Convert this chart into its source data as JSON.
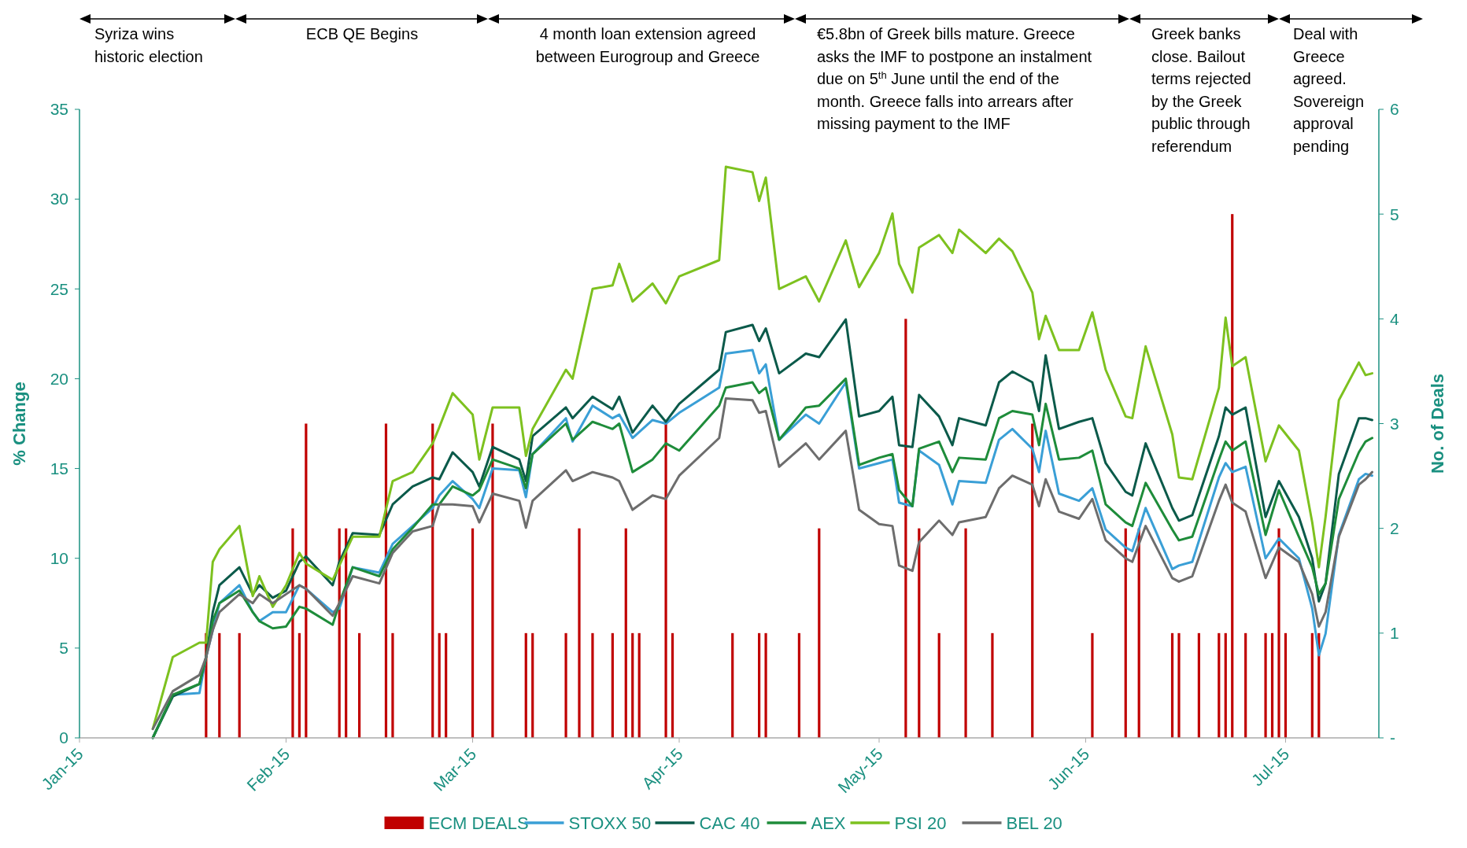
{
  "chart_data": {
    "type": "line",
    "ylabel": "% Change",
    "y2label": "No. of Deals",
    "xlim": [
      "2015-01-01",
      "2015-07-15"
    ],
    "xticks": [
      {
        "value": "2015-01-01",
        "label": "Jan-15"
      },
      {
        "value": "2015-02-01",
        "label": "Feb-15"
      },
      {
        "value": "2015-03-01",
        "label": "Mar-15"
      },
      {
        "value": "2015-04-01",
        "label": "Apr-15"
      },
      {
        "value": "2015-05-01",
        "label": "May-15"
      },
      {
        "value": "2015-06-01",
        "label": "Jun-15"
      },
      {
        "value": "2015-07-01",
        "label": "Jul-15"
      }
    ],
    "ylim": [
      0,
      35
    ],
    "yticks": [
      0,
      5,
      10,
      15,
      20,
      25,
      30,
      35
    ],
    "y2lim": [
      0,
      6
    ],
    "y2ticks": [
      {
        "value": 0,
        "label": "-"
      },
      1,
      2,
      3,
      4,
      5,
      6
    ],
    "legend": "bottom",
    "grid": false,
    "marker": "none",
    "line_style": "solid",
    "annotations": [
      "Syriza wins historic election",
      "ECB QE Begins",
      "4 month loan extension agreed between Eurogroup and Greece",
      "€5.8bn of Greek bills mature. Greece asks the IMF to postpone an instalment due on 5$^{th}$ June until the end of the month. Greece falls into arrears after missing payment to the IMF",
      "Greek banks close. Bailout terms rejected by the Greek public through referendum",
      "Deal with Greece agreed. Sovereign approval pending"
    ],
    "x": [
      "2015-01-12",
      "2015-01-15",
      "2015-01-19",
      "2015-01-20",
      "2015-01-21",
      "2015-01-22",
      "2015-01-25",
      "2015-01-27",
      "2015-01-28",
      "2015-01-30",
      "2015-02-01",
      "2015-02-03",
      "2015-02-04",
      "2015-02-08",
      "2015-02-09",
      "2015-02-11",
      "2015-02-15",
      "2015-02-17",
      "2015-02-20",
      "2015-02-23",
      "2015-02-24",
      "2015-02-26",
      "2015-03-01",
      "2015-03-02",
      "2015-03-04",
      "2015-03-08",
      "2015-03-09",
      "2015-03-10",
      "2015-03-15",
      "2015-03-16",
      "2015-03-19",
      "2015-03-22",
      "2015-03-23",
      "2015-03-25",
      "2015-03-28",
      "2015-03-30",
      "2015-04-01",
      "2015-04-07",
      "2015-04-08",
      "2015-04-12",
      "2015-04-13",
      "2015-04-14",
      "2015-04-16",
      "2015-04-20",
      "2015-04-22",
      "2015-04-26",
      "2015-04-28",
      "2015-05-01",
      "2015-05-03",
      "2015-05-04",
      "2015-05-06",
      "2015-05-07",
      "2015-05-10",
      "2015-05-12",
      "2015-05-13",
      "2015-05-17",
      "2015-05-19",
      "2015-05-21",
      "2015-05-24",
      "2015-05-25",
      "2015-05-26",
      "2015-05-28",
      "2015-05-31",
      "2015-06-02",
      "2015-06-04",
      "2015-06-07",
      "2015-06-08",
      "2015-06-10",
      "2015-06-14",
      "2015-06-15",
      "2015-06-17",
      "2015-06-21",
      "2015-06-22",
      "2015-06-23",
      "2015-06-25",
      "2015-06-28",
      "2015-06-30",
      "2015-07-03",
      "2015-07-05",
      "2015-07-06",
      "2015-07-07",
      "2015-07-09",
      "2015-07-12",
      "2015-07-13",
      "2015-07-14"
    ],
    "series": [
      {
        "name": "ECM DEALS",
        "type": "bar",
        "axis": "y2",
        "color": "#c00000",
        "x": [
          "2015-01-20",
          "2015-01-22",
          "2015-01-25",
          "2015-02-02",
          "2015-02-03",
          "2015-02-04",
          "2015-02-09",
          "2015-02-10",
          "2015-02-12",
          "2015-02-16",
          "2015-02-17",
          "2015-02-23",
          "2015-02-24",
          "2015-02-25",
          "2015-03-01",
          "2015-03-04",
          "2015-03-09",
          "2015-03-10",
          "2015-03-15",
          "2015-03-17",
          "2015-03-19",
          "2015-03-22",
          "2015-03-24",
          "2015-03-25",
          "2015-03-26",
          "2015-03-30",
          "2015-03-31",
          "2015-04-09",
          "2015-04-13",
          "2015-04-14",
          "2015-04-19",
          "2015-04-22",
          "2015-05-05",
          "2015-05-07",
          "2015-05-10",
          "2015-05-14",
          "2015-05-18",
          "2015-05-24",
          "2015-06-02",
          "2015-06-07",
          "2015-06-09",
          "2015-06-14",
          "2015-06-15",
          "2015-06-18",
          "2015-06-21",
          "2015-06-22",
          "2015-06-23",
          "2015-06-25",
          "2015-06-28",
          "2015-06-29",
          "2015-06-30",
          "2015-07-01",
          "2015-07-05",
          "2015-07-06"
        ],
        "values": [
          1,
          1,
          1,
          2,
          1,
          3,
          2,
          2,
          1,
          3,
          1,
          3,
          1,
          1,
          2,
          3,
          1,
          1,
          1,
          2,
          1,
          1,
          2,
          1,
          1,
          3,
          1,
          1,
          1,
          1,
          1,
          2,
          4,
          2,
          1,
          2,
          1,
          3,
          1,
          2,
          2,
          1,
          1,
          1,
          1,
          1,
          5,
          1,
          1,
          1,
          2,
          1,
          1,
          1
        ]
      },
      {
        "name": "STOXX 50",
        "color": "#3a9fd6",
        "values": [
          0,
          2.4,
          2.5,
          4.5,
          6,
          7.5,
          8.5,
          7,
          6.5,
          7,
          7,
          8.5,
          8.3,
          7,
          7.2,
          9.5,
          9.2,
          10.8,
          11.8,
          12.8,
          13.5,
          14.3,
          13.3,
          12.8,
          15,
          14.9,
          13.4,
          15.8,
          17.8,
          16.5,
          18.5,
          17.8,
          18,
          16.7,
          17.7,
          17.5,
          18.1,
          19.5,
          21.4,
          21.6,
          20.3,
          20.8,
          16.6,
          18,
          17.5,
          19.8,
          15,
          15.3,
          15.5,
          13.1,
          12.9,
          16,
          15.2,
          13,
          14.3,
          14.2,
          16.6,
          17.2,
          16.1,
          14.8,
          17.1,
          13.6,
          13.2,
          13.9,
          11.6,
          10.6,
          10.4,
          12.8,
          9.4,
          9.6,
          9.8,
          14.5,
          15.3,
          14.8,
          15.1,
          10,
          11.1,
          10,
          7.2,
          4.6,
          5.8,
          11.3,
          14.4,
          14.7,
          14.6
        ]
      },
      {
        "name": "CAC 40",
        "color": "#0b5a4a",
        "values": [
          0,
          2.3,
          3,
          4.5,
          7,
          8.5,
          9.5,
          8,
          8.5,
          7.8,
          8.2,
          9.8,
          10.1,
          8.5,
          9.8,
          11.4,
          11.3,
          13,
          14,
          14.5,
          14.4,
          15.9,
          14.8,
          14,
          16.2,
          15.5,
          14.3,
          16.8,
          18.4,
          17.8,
          19,
          18.3,
          19,
          17,
          18.5,
          17.6,
          18.6,
          20.5,
          22.6,
          23,
          22.1,
          22.8,
          20.3,
          21.4,
          21.2,
          23.3,
          17.9,
          18.2,
          19,
          16.3,
          16.2,
          19.1,
          17.9,
          16.3,
          17.8,
          17.4,
          19.8,
          20.4,
          19.8,
          18.2,
          21.3,
          17.2,
          17.6,
          17.8,
          15.3,
          13.7,
          13.5,
          16.4,
          12.8,
          12.1,
          12.4,
          16.8,
          18.4,
          18,
          18.4,
          12.3,
          14.3,
          12.3,
          10,
          7.6,
          8.6,
          14.7,
          17.8,
          17.8,
          17.7
        ]
      },
      {
        "name": "AEX",
        "color": "#1e8c3a",
        "values": [
          0,
          2.4,
          3,
          4.5,
          6.5,
          7.5,
          8.2,
          7,
          6.5,
          6.1,
          6.2,
          7.3,
          7.2,
          6.3,
          7.5,
          9.5,
          9,
          10.5,
          11.7,
          13,
          13,
          14,
          13.5,
          13.8,
          15.5,
          15,
          13.9,
          15.8,
          17.5,
          16.6,
          17.6,
          17.2,
          17.5,
          14.8,
          15.5,
          16.4,
          16,
          18.5,
          19.5,
          19.8,
          19.2,
          19.5,
          16.6,
          18.4,
          18.5,
          20,
          15.2,
          15.6,
          15.8,
          13.8,
          12.9,
          16.1,
          16.5,
          14.8,
          15.6,
          15.5,
          17.8,
          18.2,
          18,
          16.3,
          18.6,
          15.5,
          15.6,
          16,
          13,
          12,
          11.8,
          14.2,
          11.6,
          11,
          11.2,
          15.5,
          16.5,
          16,
          16.5,
          11.3,
          13.8,
          11.2,
          9.5,
          8,
          8.6,
          13.3,
          15.9,
          16.5,
          16.7
        ]
      },
      {
        "name": "PSI 20",
        "color": "#7dc11f",
        "values": [
          0.5,
          4.5,
          5.3,
          5.3,
          9.8,
          10.5,
          11.8,
          7.9,
          9,
          7.3,
          8.5,
          10.3,
          9.7,
          8.8,
          9.6,
          11.2,
          11.2,
          14.3,
          14.8,
          16.4,
          17.3,
          19.2,
          18,
          15.5,
          18.4,
          18.4,
          15.7,
          17.2,
          20.5,
          20,
          25,
          25.2,
          26.4,
          24.3,
          25.3,
          24.2,
          25.7,
          26.6,
          31.8,
          31.5,
          29.9,
          31.2,
          25,
          25.7,
          24.3,
          27.7,
          25.1,
          27,
          29.2,
          26.4,
          24.8,
          27.3,
          28,
          27,
          28.3,
          27,
          27.8,
          27.1,
          24.8,
          22.2,
          23.5,
          21.6,
          21.6,
          23.7,
          20.5,
          17.9,
          17.8,
          21.8,
          16.9,
          14.5,
          14.4,
          19.5,
          23.4,
          20.7,
          21.2,
          15.4,
          17.4,
          16,
          12,
          9.5,
          12.3,
          18.8,
          20.9,
          20.2,
          20.3
        ]
      },
      {
        "name": "BEL 20",
        "color": "#6d6d6d",
        "values": [
          0.5,
          2.6,
          3.5,
          4.5,
          6,
          7,
          8,
          7.5,
          8,
          7.5,
          8,
          8.5,
          8.3,
          6.8,
          7.5,
          9,
          8.6,
          10.3,
          11.5,
          11.8,
          13,
          13,
          12.9,
          12,
          13.6,
          13.2,
          11.7,
          13.2,
          14.9,
          14.3,
          14.8,
          14.5,
          14.3,
          12.7,
          13.5,
          13.3,
          14.6,
          16.7,
          18.9,
          18.8,
          18.1,
          18.2,
          15.1,
          16.4,
          15.5,
          17.1,
          12.7,
          11.9,
          11.8,
          9.6,
          9.3,
          10.9,
          12.1,
          11.3,
          12,
          12.3,
          13.9,
          14.6,
          14.1,
          12.9,
          14.4,
          12.6,
          12.2,
          13.3,
          11,
          10,
          9.8,
          11.8,
          8.9,
          8.7,
          9,
          13.2,
          14.1,
          13.1,
          12.6,
          8.9,
          10.6,
          9.8,
          8,
          6.2,
          7,
          11.2,
          14.1,
          14.4,
          14.8
        ]
      }
    ]
  }
}
